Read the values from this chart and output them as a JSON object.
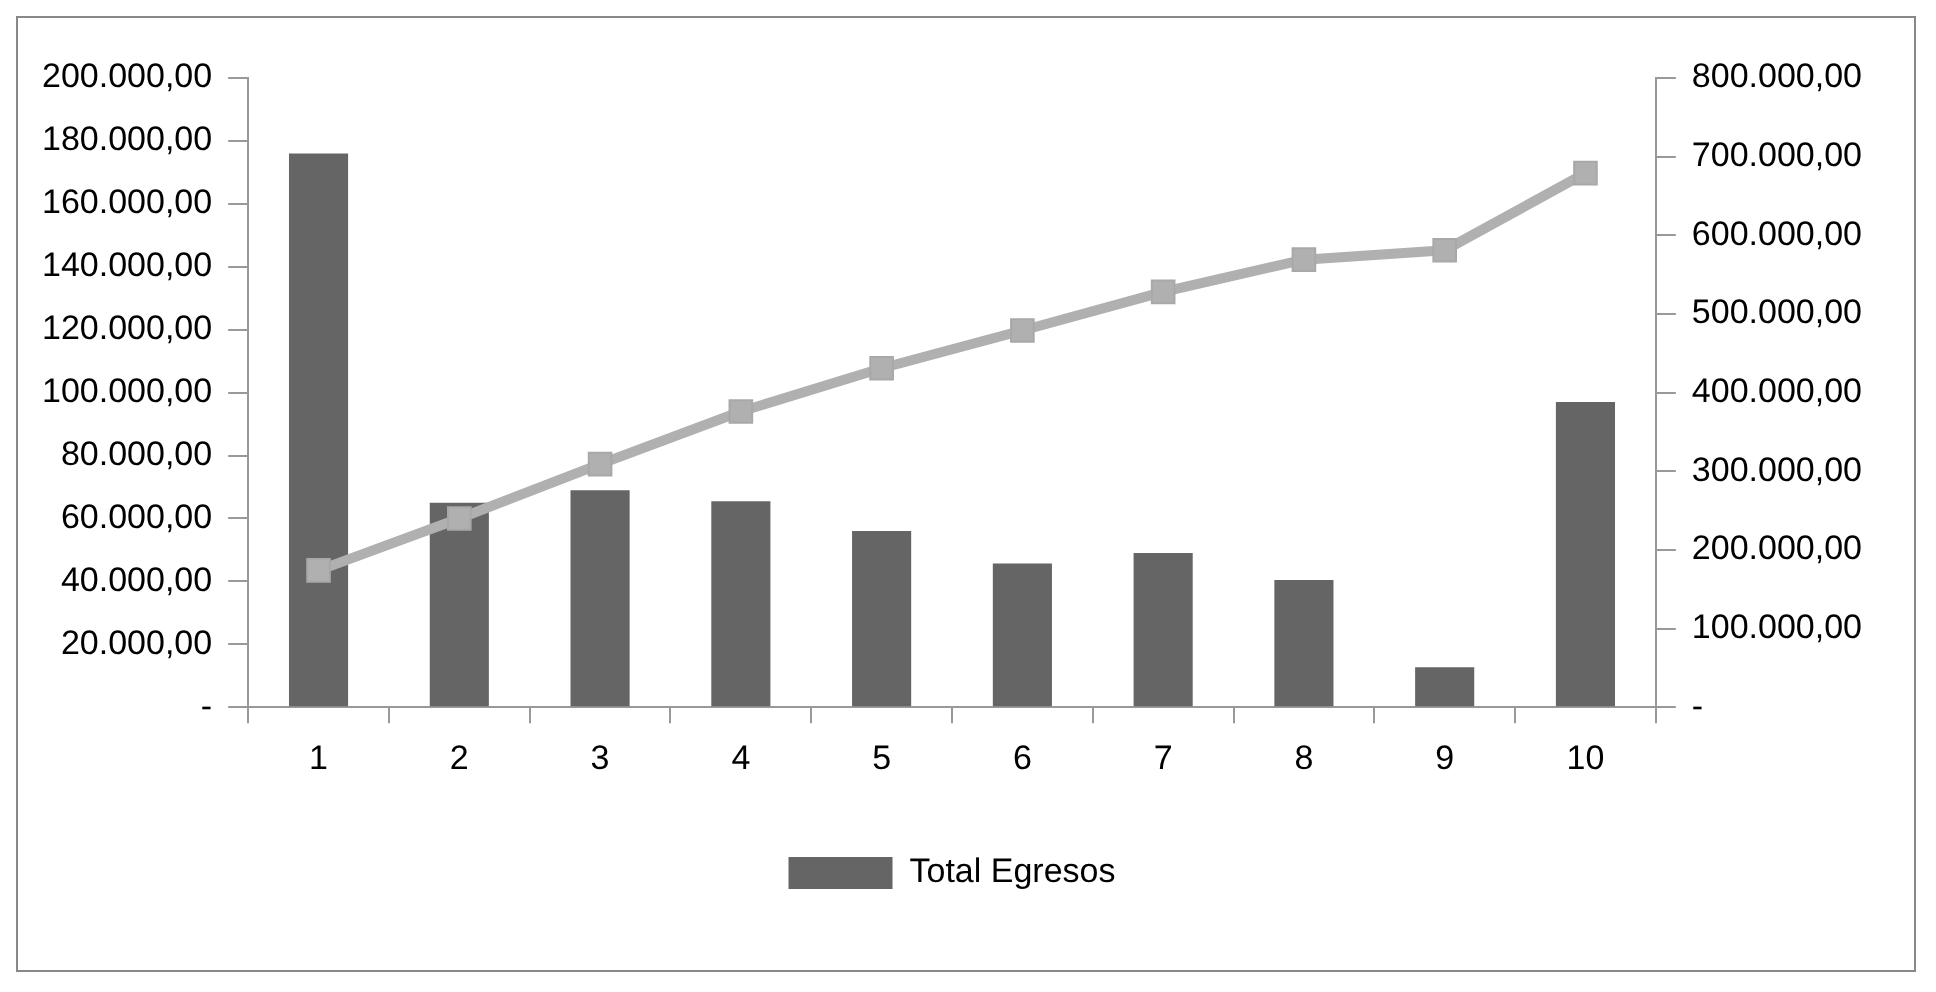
{
  "chart_data": {
    "type": "bar",
    "categories": [
      "1",
      "2",
      "3",
      "4",
      "5",
      "6",
      "7",
      "8",
      "9",
      "10"
    ],
    "series": [
      {
        "name": "Total Egresos",
        "color": "#656565",
        "values": [
          176000,
          65000,
          69000,
          65500,
          56000,
          45700,
          49000,
          40400,
          12700,
          97000
        ]
      },
      {
        "type": "line",
        "axis": "y2",
        "color": "#b0b0b0",
        "values": [
          174000,
          240000,
          309000,
          376000,
          431000,
          479000,
          528000,
          569000,
          581000,
          679000
        ]
      }
    ],
    "ylim": [
      0,
      200000
    ],
    "yticks": [
      {
        "value": 0,
        "label": "-"
      },
      {
        "value": 20000,
        "label": "20.000,00"
      },
      {
        "value": 40000,
        "label": "40.000,00"
      },
      {
        "value": 60000,
        "label": "60.000,00"
      },
      {
        "value": 80000,
        "label": "80.000,00"
      },
      {
        "value": 100000,
        "label": "100.000,00"
      },
      {
        "value": 120000,
        "label": "120.000,00"
      },
      {
        "value": 140000,
        "label": "140.000,00"
      },
      {
        "value": 160000,
        "label": "160.000,00"
      },
      {
        "value": 180000,
        "label": "180.000,00"
      },
      {
        "value": 200000,
        "label": "200.000,00"
      }
    ],
    "y2lim": [
      0,
      800000
    ],
    "y2ticks": [
      {
        "value": 0,
        "label": "-"
      },
      {
        "value": 100000,
        "label": "100.000,00"
      },
      {
        "value": 200000,
        "label": "200.000,00"
      },
      {
        "value": 300000,
        "label": "300.000,00"
      },
      {
        "value": 400000,
        "label": "400.000,00"
      },
      {
        "value": 500000,
        "label": "500.000,00"
      },
      {
        "value": 600000,
        "label": "600.000,00"
      },
      {
        "value": 700000,
        "label": "700.000,00"
      },
      {
        "value": 800000,
        "label": "800.000,00"
      }
    ],
    "grid": false,
    "legend": "bottom",
    "marker": "square",
    "line_style": "solid"
  }
}
